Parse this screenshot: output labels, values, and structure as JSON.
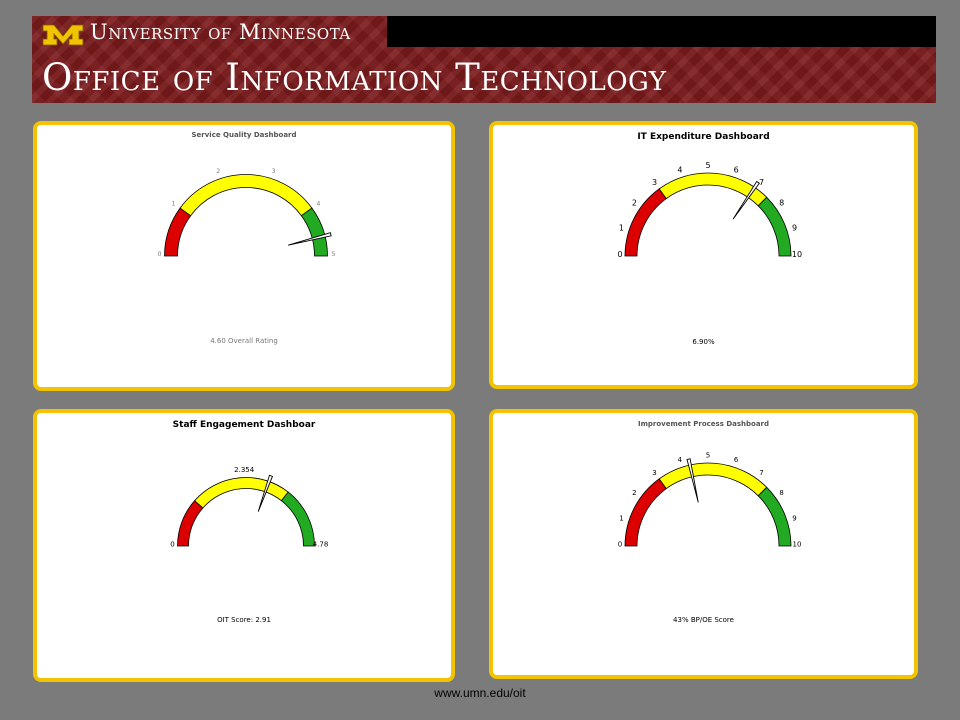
{
  "header": {
    "university": "University of Minnesota",
    "office": "Office of Information Technology",
    "logo_icon": "block-m-logo-icon"
  },
  "footer": {
    "url": "www.umn.edu/oit"
  },
  "colors": {
    "red": "#dd0000",
    "yellow": "#ffff00",
    "green": "#22aa22",
    "border": "#f2c300"
  },
  "chart_data": [
    {
      "type": "gauge",
      "title": "Service Quality Dashboard",
      "min": 0,
      "max": 5,
      "ticks": [
        "0",
        "1",
        "2",
        "3",
        "4",
        "5"
      ],
      "ranges": [
        {
          "from": 0,
          "to": 1,
          "color": "#dd0000"
        },
        {
          "from": 1,
          "to": 4,
          "color": "#ffff00"
        },
        {
          "from": 4,
          "to": 5,
          "color": "#22aa22"
        }
      ],
      "value": 4.6,
      "caption": "4.60 Overall Rating"
    },
    {
      "type": "gauge",
      "title": "IT Expenditure Dashboard",
      "min": 0,
      "max": 10,
      "ticks": [
        "0",
        "1",
        "2",
        "3",
        "4",
        "5",
        "6",
        "7",
        "8",
        "9",
        "10"
      ],
      "ranges": [
        {
          "from": 0,
          "to": 3,
          "color": "#dd0000"
        },
        {
          "from": 3,
          "to": 7.5,
          "color": "#ffff00"
        },
        {
          "from": 7.5,
          "to": 10,
          "color": "#22aa22"
        }
      ],
      "value": 6.9,
      "caption": "6.90%"
    },
    {
      "type": "gauge",
      "title": "Staff Engagement Dashboar",
      "min": 0,
      "max": 4.78,
      "ticks": [
        "0",
        "2.354",
        "4.78"
      ],
      "tick_values": [
        0,
        2.354,
        4.78
      ],
      "ranges": [
        {
          "from": 0,
          "to": 1.1,
          "color": "#dd0000"
        },
        {
          "from": 1.1,
          "to": 3.4,
          "color": "#ffff00"
        },
        {
          "from": 3.4,
          "to": 4.78,
          "color": "#22aa22"
        }
      ],
      "value": 2.91,
      "caption": "OIT Score: 2.91"
    },
    {
      "type": "gauge",
      "title": "Improvement Process Dashboard",
      "min": 0,
      "max": 10,
      "ticks": [
        "0",
        "1",
        "2",
        "3",
        "4",
        "5",
        "6",
        "7",
        "8",
        "9",
        "10"
      ],
      "ranges": [
        {
          "from": 0,
          "to": 3,
          "color": "#dd0000"
        },
        {
          "from": 3,
          "to": 7.5,
          "color": "#ffff00"
        },
        {
          "from": 7.5,
          "to": 10,
          "color": "#22aa22"
        }
      ],
      "value": 4.3,
      "caption": "43% BP/OE Score"
    }
  ]
}
